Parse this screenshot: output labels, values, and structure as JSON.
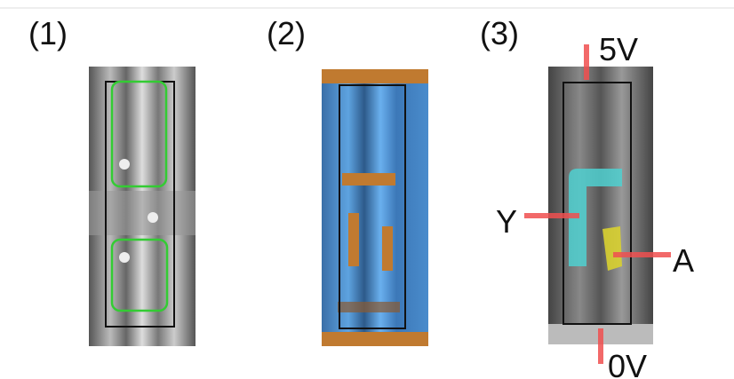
{
  "panels": [
    {
      "label": "(1)"
    },
    {
      "label": "(2)"
    },
    {
      "label": "(3)"
    }
  ],
  "annotations": {
    "top": "5V",
    "left": "Y",
    "right": "A",
    "bottom": "0V"
  }
}
